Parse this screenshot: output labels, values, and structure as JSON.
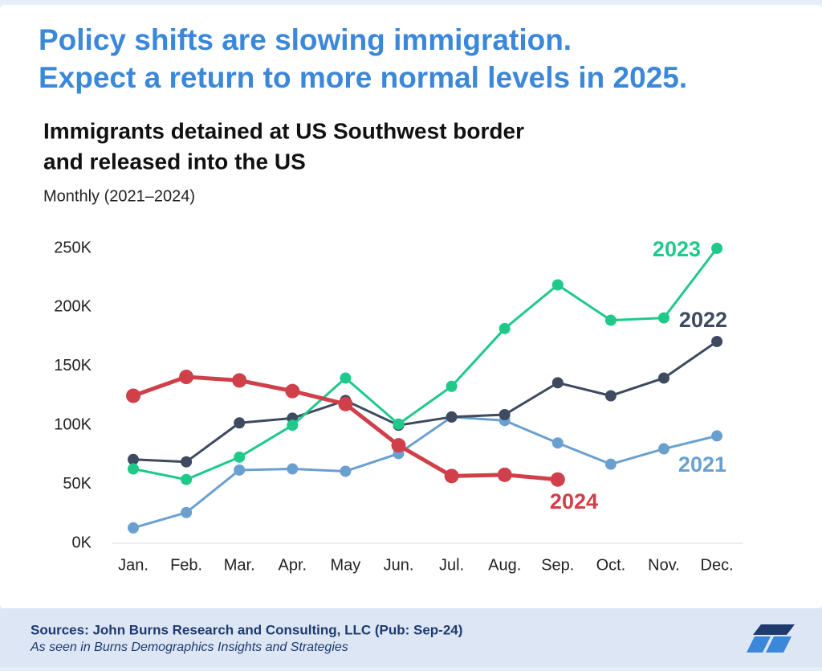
{
  "headline": [
    "Policy shifts are slowing immigration.",
    "Expect a return to more normal levels in 2025."
  ],
  "chart_data": {
    "type": "line",
    "title": [
      "Immigrants detained at US Southwest border",
      "and released into the US"
    ],
    "subtitle": "Monthly (2021–2024)",
    "categories": [
      "Jan.",
      "Feb.",
      "Mar.",
      "Apr.",
      "May",
      "Jun.",
      "Jul.",
      "Aug.",
      "Sep.",
      "Oct.",
      "Nov.",
      "Dec."
    ],
    "ylim": [
      0,
      250
    ],
    "yticks": [
      {
        "value": 0,
        "label": "0K"
      },
      {
        "value": 50,
        "label": "50K"
      },
      {
        "value": 100,
        "label": "100K"
      },
      {
        "value": 150,
        "label": "150K"
      },
      {
        "value": 200,
        "label": "200K"
      },
      {
        "value": 250,
        "label": "250K"
      }
    ],
    "grid": false,
    "series": [
      {
        "name": "2021",
        "color": "#6aa0d0",
        "values": [
          13,
          26,
          62,
          63,
          61,
          76,
          107,
          104,
          85,
          67,
          80,
          91
        ]
      },
      {
        "name": "2022",
        "color": "#3d4a60",
        "values": [
          71,
          69,
          102,
          106,
          121,
          100,
          107,
          109,
          136,
          125,
          140,
          171
        ]
      },
      {
        "name": "2023",
        "color": "#1fc98a",
        "values": [
          63,
          54,
          73,
          100,
          140,
          101,
          133,
          182,
          219,
          189,
          191,
          250
        ]
      },
      {
        "name": "2024",
        "color": "#d0404a",
        "values": [
          125,
          141,
          138,
          129,
          118,
          83,
          57,
          58,
          54,
          null,
          null,
          null
        ]
      }
    ]
  },
  "footer": {
    "source": "Sources: John Burns Research and Consulting, LLC (Pub: Sep-24)",
    "note": "As seen in Burns Demographics Insights and Strategies"
  }
}
